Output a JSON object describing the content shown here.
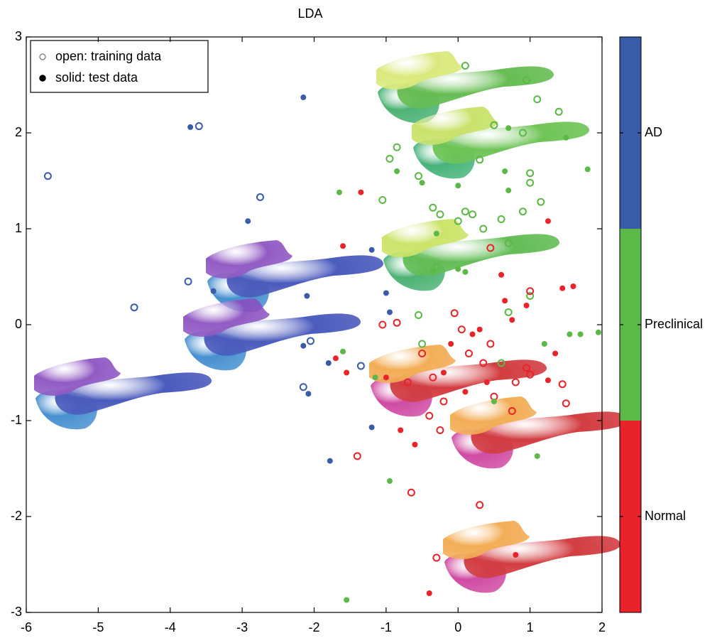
{
  "chart_data": {
    "type": "scatter",
    "title": "LDA",
    "xlim": [
      -6,
      2
    ],
    "xticks": [
      -6,
      -5,
      -4,
      -3,
      -2,
      -1,
      0,
      1,
      2
    ],
    "ylim": [
      -3,
      3
    ],
    "yticks": [
      -3,
      -2,
      -1,
      0,
      1,
      2,
      3
    ],
    "legend_position": "upper left",
    "colorbar": {
      "labels": [
        "Normal",
        "Preclinical",
        "AD"
      ],
      "colors": [
        "#e8242a",
        "#5cb847",
        "#3a5ba8"
      ]
    },
    "series": [
      {
        "name": "open: training data",
        "marker": "open",
        "color": "#888888",
        "x": [
          -5.7,
          -3.6,
          -2.75,
          -4.5,
          -3.75,
          -2.05,
          -2.15,
          -1.35,
          -0.95,
          -0.85,
          -0.55,
          -0.35,
          -0.25,
          0.0,
          0.1,
          0.2,
          0.35,
          0.6,
          0.9,
          1.0,
          1.0,
          1.15,
          0.9,
          0.95,
          1.1,
          1.4,
          0.3,
          -1.05,
          0.1,
          0.5,
          0.7,
          1.0,
          0.7,
          -0.3,
          -0.5,
          -0.55,
          0.6,
          -1.05,
          -0.85,
          -0.7,
          -0.5,
          -0.35,
          -0.2,
          -0.25,
          -0.4,
          0.05,
          0.15,
          0.35,
          0.45,
          0.8,
          0.75,
          0.95,
          1.0,
          1.45,
          1.5,
          1.0,
          0.45,
          -0.65,
          0.3,
          -0.3,
          -1.4,
          -0.05,
          0.5
        ],
        "y": [
          1.55,
          2.07,
          1.33,
          0.18,
          0.45,
          -0.17,
          -0.65,
          -0.43,
          1.73,
          1.85,
          1.55,
          1.22,
          1.15,
          1.08,
          1.18,
          1.15,
          1.0,
          1.1,
          1.18,
          1.58,
          1.48,
          1.28,
          2.0,
          2.55,
          2.35,
          2.22,
          1.72,
          1.3,
          2.7,
          2.08,
          0.85,
          0.3,
          0.13,
          0.6,
          -0.2,
          0.1,
          -0.4,
          0.0,
          0.02,
          -0.6,
          -0.3,
          -0.55,
          -0.8,
          -1.1,
          -0.95,
          -0.05,
          -0.3,
          -0.4,
          -0.2,
          -0.6,
          -0.9,
          -0.45,
          -0.52,
          -0.62,
          -0.82,
          0.35,
          0.8,
          -1.75,
          -1.88,
          -2.43,
          -1.37,
          0.12,
          -0.75
        ],
        "colors": [
          "#3a5ba8",
          "#3a5ba8",
          "#3a5ba8",
          "#3a5ba8",
          "#3a5ba8",
          "#3a5ba8",
          "#3a5ba8",
          "#3a5ba8",
          "#5cb847",
          "#5cb847",
          "#5cb847",
          "#5cb847",
          "#5cb847",
          "#5cb847",
          "#5cb847",
          "#5cb847",
          "#5cb847",
          "#5cb847",
          "#5cb847",
          "#5cb847",
          "#5cb847",
          "#5cb847",
          "#5cb847",
          "#5cb847",
          "#5cb847",
          "#5cb847",
          "#5cb847",
          "#5cb847",
          "#5cb847",
          "#5cb847",
          "#5cb847",
          "#5cb847",
          "#5cb847",
          "#5cb847",
          "#5cb847",
          "#5cb847",
          "#5cb847",
          "#e8242a",
          "#e8242a",
          "#e8242a",
          "#e8242a",
          "#e8242a",
          "#e8242a",
          "#e8242a",
          "#e8242a",
          "#e8242a",
          "#e8242a",
          "#e8242a",
          "#e8242a",
          "#e8242a",
          "#e8242a",
          "#e8242a",
          "#e8242a",
          "#e8242a",
          "#e8242a",
          "#e8242a",
          "#e8242a",
          "#e8242a",
          "#e8242a",
          "#e8242a",
          "#e8242a",
          "#e8242a",
          "#e8242a"
        ]
      },
      {
        "name": "solid: test data",
        "marker": "solid",
        "color": "#000000",
        "x": [
          -2.15,
          -3.72,
          -2.92,
          -2.1,
          -2.15,
          -2.08,
          -1.8,
          -1.78,
          -1.2,
          -1.2,
          -1.0,
          -3.4,
          -0.95,
          -1.65,
          -0.85,
          -0.5,
          0.0,
          0.65,
          0.7,
          1.8,
          1.5,
          0.7,
          -0.35,
          0.0,
          0.1,
          -1.6,
          -1.15,
          -0.95,
          -1.55,
          1.55,
          1.7,
          1.95,
          1.2,
          1.1,
          0.5,
          -0.3,
          -1.35,
          -1.6,
          -1.7,
          -1.55,
          -1.0,
          -0.8,
          -0.6,
          -0.4,
          -0.1,
          0.2,
          0.3,
          0.6,
          0.65,
          0.75,
          0.95,
          1.25,
          1.45,
          1.6,
          0.4,
          0.1,
          -0.2,
          0.8,
          1.25,
          1.35
        ],
        "y": [
          2.37,
          2.06,
          1.08,
          0.3,
          -0.22,
          -0.72,
          -0.4,
          -1.42,
          -1.07,
          0.78,
          0.33,
          0.35,
          0.13,
          1.38,
          1.6,
          1.48,
          1.45,
          1.6,
          1.4,
          1.62,
          1.95,
          2.05,
          0.55,
          0.58,
          0.55,
          -0.28,
          -0.55,
          -1.63,
          -2.87,
          -0.1,
          -0.1,
          -0.08,
          -0.2,
          -1.37,
          -0.8,
          0.95,
          1.38,
          0.82,
          -0.35,
          -0.5,
          -0.55,
          -1.1,
          -1.25,
          -2.8,
          -0.2,
          -0.1,
          -0.05,
          0.52,
          0.25,
          0.05,
          0.2,
          1.08,
          0.38,
          0.4,
          -0.6,
          -0.7,
          -0.5,
          -2.4,
          -0.58,
          -0.3
        ],
        "colors": [
          "#3a5ba8",
          "#3a5ba8",
          "#3a5ba8",
          "#3a5ba8",
          "#3a5ba8",
          "#3a5ba8",
          "#3a5ba8",
          "#3a5ba8",
          "#3a5ba8",
          "#3a5ba8",
          "#3a5ba8",
          "#3a5ba8",
          "#3a5ba8",
          "#5cb847",
          "#5cb847",
          "#5cb847",
          "#5cb847",
          "#5cb847",
          "#5cb847",
          "#5cb847",
          "#5cb847",
          "#5cb847",
          "#5cb847",
          "#5cb847",
          "#5cb847",
          "#5cb847",
          "#5cb847",
          "#5cb847",
          "#5cb847",
          "#5cb847",
          "#5cb847",
          "#5cb847",
          "#5cb847",
          "#5cb847",
          "#5cb847",
          "#5cb847",
          "#e8242a",
          "#e8242a",
          "#e8242a",
          "#e8242a",
          "#e8242a",
          "#e8242a",
          "#e8242a",
          "#e8242a",
          "#e8242a",
          "#e8242a",
          "#e8242a",
          "#e8242a",
          "#e8242a",
          "#e8242a",
          "#e8242a",
          "#e8242a",
          "#e8242a",
          "#e8242a",
          "#e8242a",
          "#e8242a",
          "#e8242a",
          "#e8242a",
          "#e8242a",
          "#e8242a"
        ]
      }
    ]
  }
}
